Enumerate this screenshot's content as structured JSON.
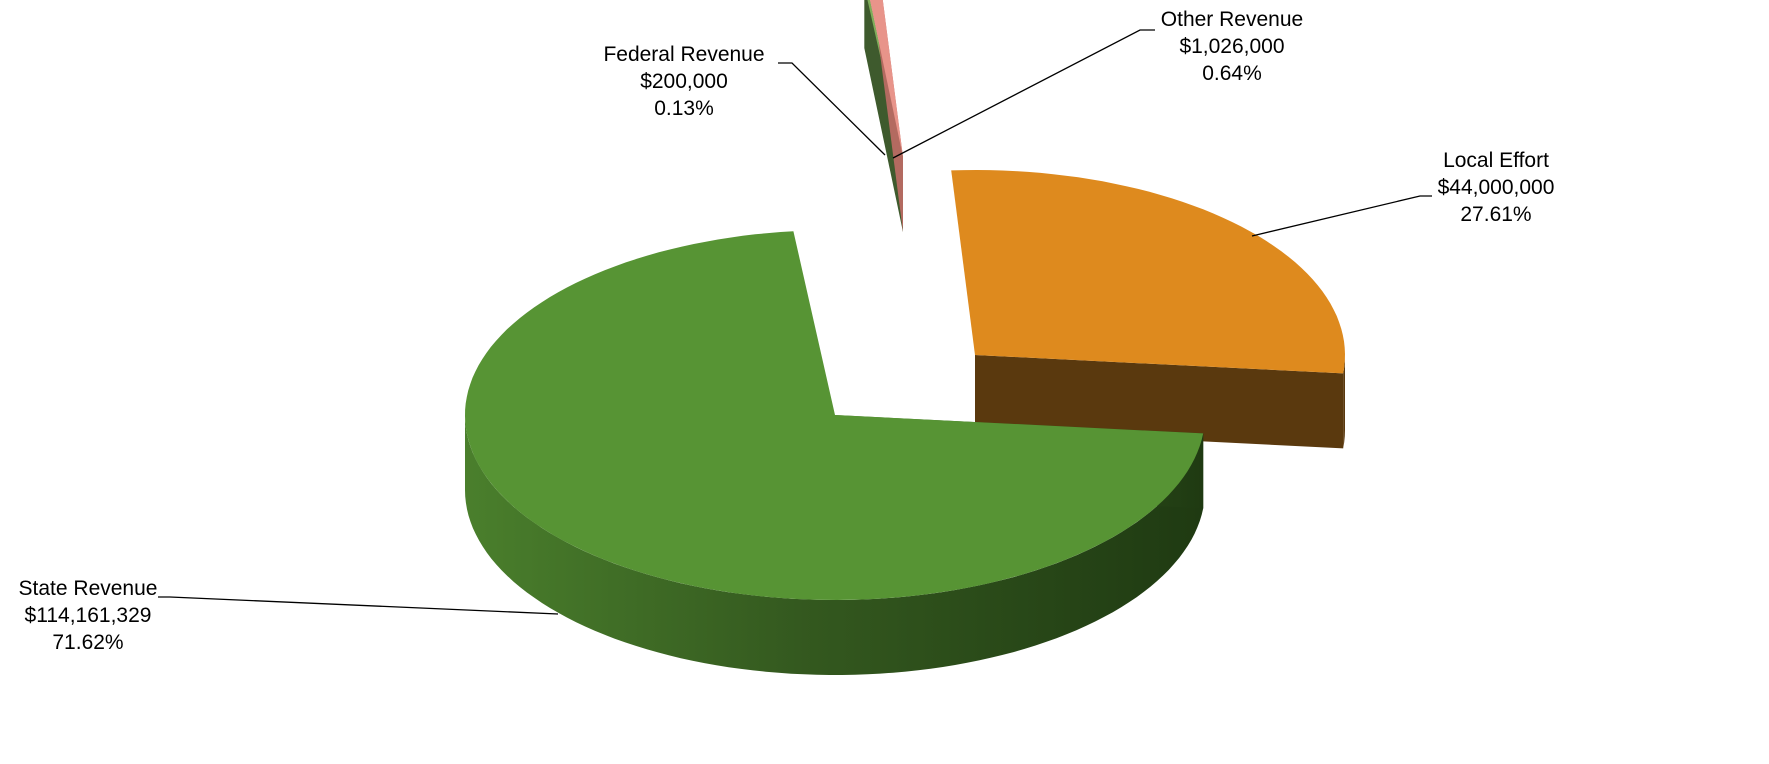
{
  "chart_data": {
    "type": "pie",
    "style": "3d-exploded",
    "slices": [
      {
        "label": "Other Revenue",
        "amount": "$1,026,000",
        "percent": "0.64%",
        "value": 1026000,
        "color": "#E8948A"
      },
      {
        "label": "Local Effort",
        "amount": "$44,000,000",
        "percent": "27.61%",
        "value": 44000000,
        "color": "#DE8A1E"
      },
      {
        "label": "State Revenue",
        "amount": "$114,161,329",
        "percent": "71.62%",
        "value": 114161329,
        "color": "#579434"
      },
      {
        "label": "Federal Revenue",
        "amount": "$200,000",
        "percent": "0.13%",
        "value": 200000,
        "color": "#7FAE5A"
      }
    ],
    "legend": "none",
    "grid": false
  }
}
